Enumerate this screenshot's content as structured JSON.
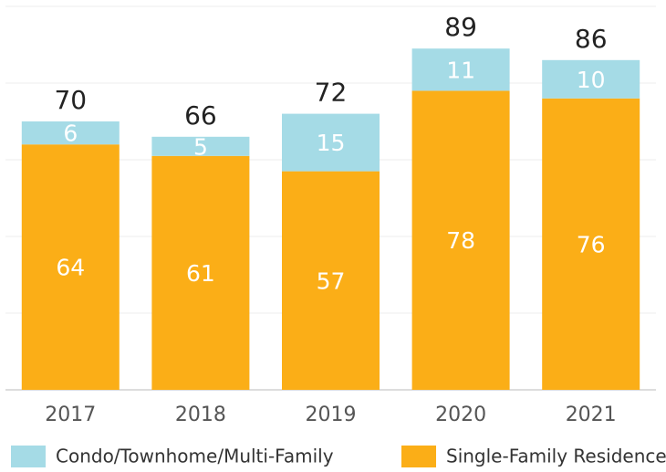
{
  "chart_data": {
    "type": "stacked_bar",
    "categories": [
      "2017",
      "2018",
      "2019",
      "2020",
      "2021"
    ],
    "series": [
      {
        "name": "Single-Family Residence",
        "color": "#fbae17",
        "values": [
          64,
          61,
          57,
          78,
          76
        ]
      },
      {
        "name": "Condo/Townhome/Multi-Family",
        "color": "#a5dbe6",
        "values": [
          6,
          5,
          15,
          11,
          10
        ]
      }
    ],
    "totals": [
      70,
      66,
      72,
      89,
      86
    ],
    "ylim": [
      0,
      100
    ],
    "yticks": [
      0,
      20,
      40,
      60,
      80,
      100
    ],
    "grid": true
  }
}
